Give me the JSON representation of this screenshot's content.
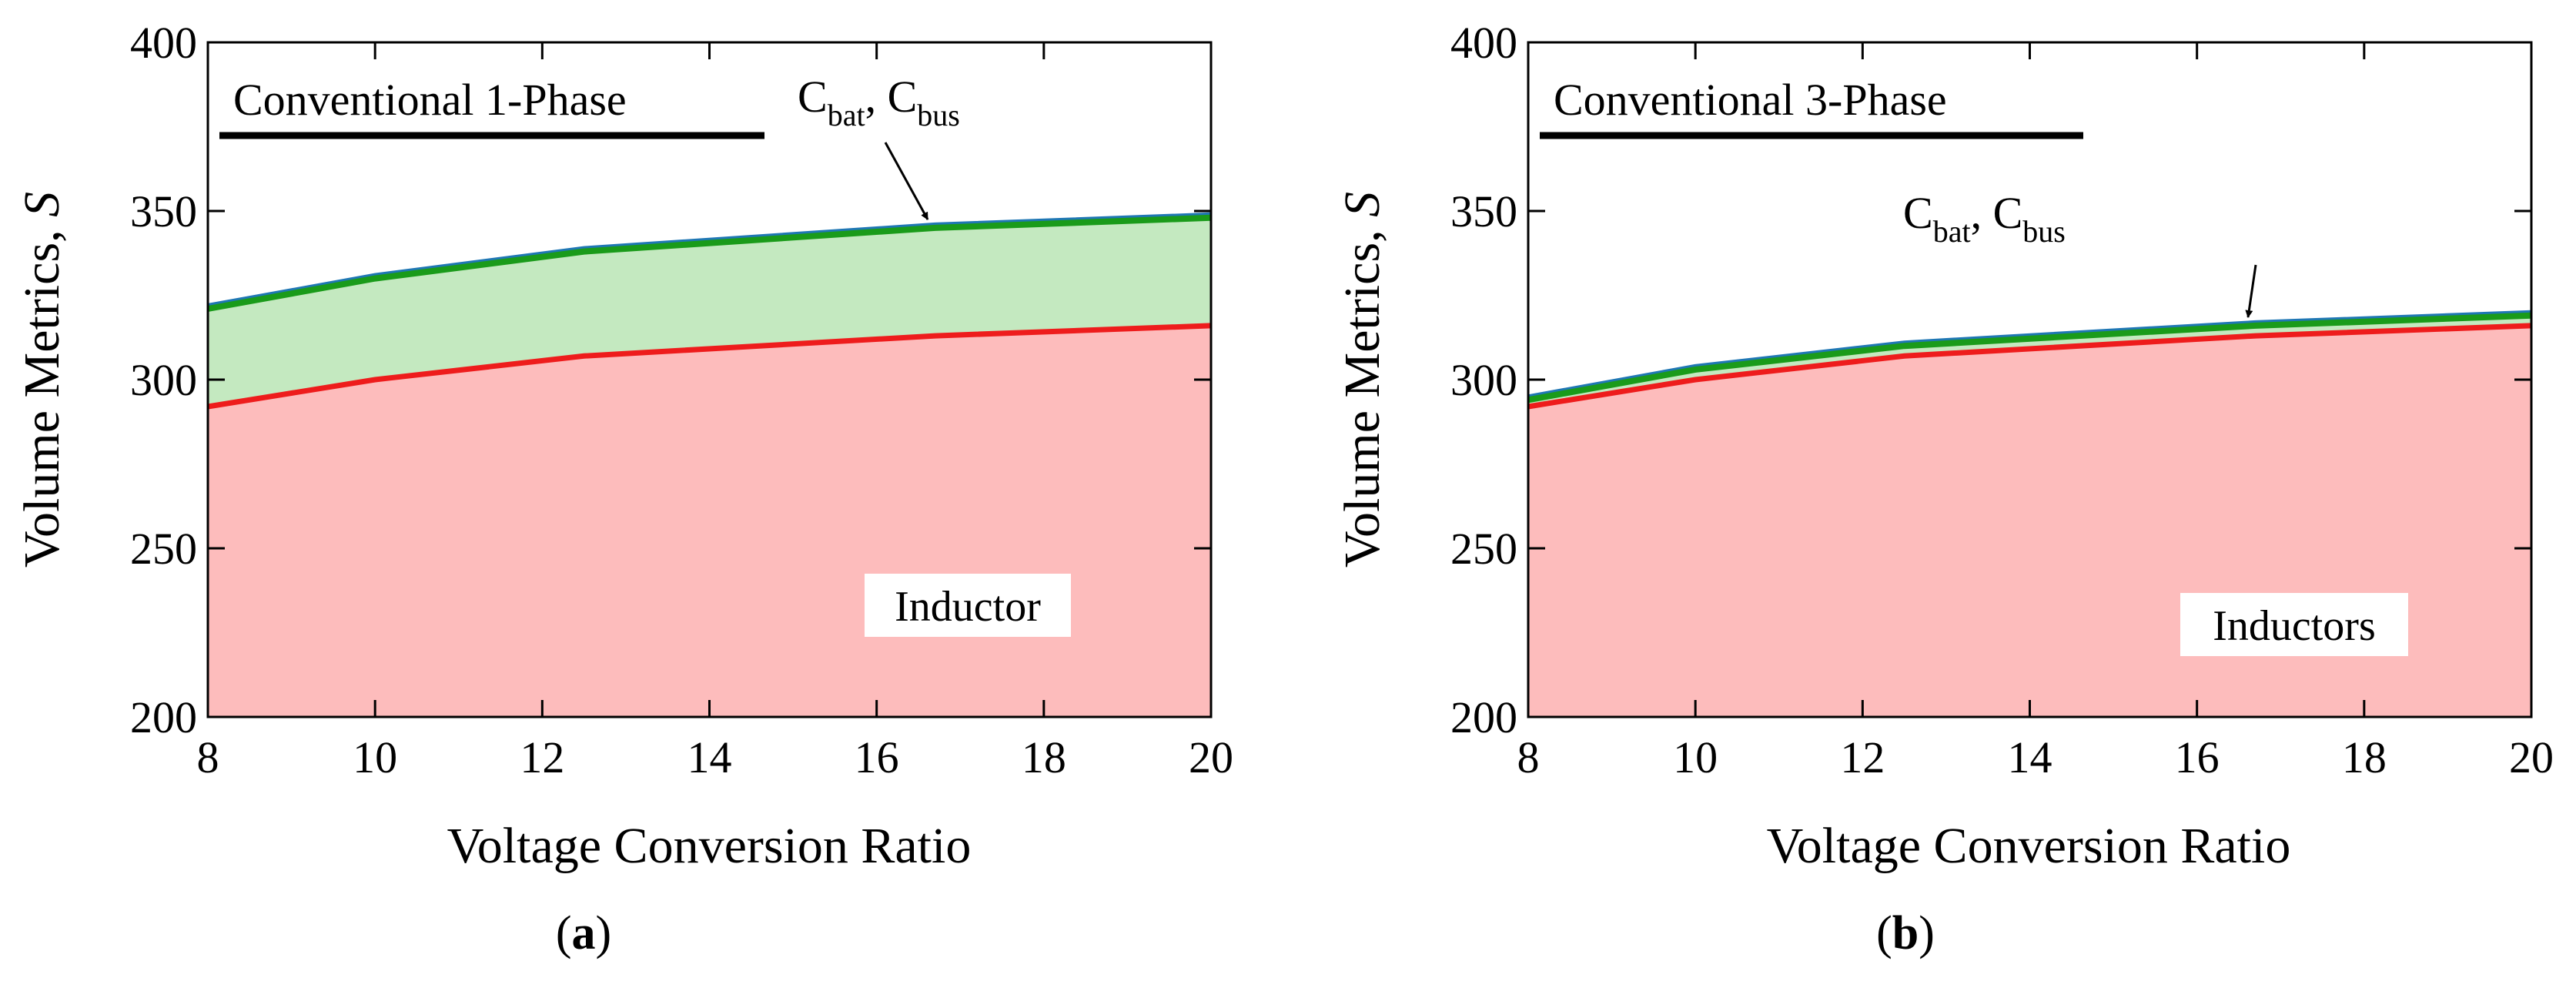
{
  "panels": [
    {
      "caption": "a",
      "title_box": "Conventional 1-Phase",
      "cap_label": {
        "main": "C",
        "sub1": "bat",
        "sep": ", C",
        "sub2": "bus"
      },
      "area_label": "Inductor",
      "xlabel": "Voltage Conversion Ratio",
      "ylabel": "Volume Metrics, ",
      "ylabel_italic": "S"
    },
    {
      "caption": "b",
      "title_box": "Conventional 3-Phase",
      "cap_label": {
        "main": "C",
        "sub1": "bat",
        "sep": ", C",
        "sub2": "bus"
      },
      "area_label": "Inductors",
      "xlabel": "Voltage Conversion Ratio",
      "ylabel": "Volume Metrics, ",
      "ylabel_italic": "S"
    }
  ],
  "colors": {
    "inductor_fill": "#fdbcbc",
    "inductor_line": "#ee1c1c",
    "capacitor_fill": "#c4e9c0",
    "capacitor_line": "#1a9b1a",
    "blue_line": "#1f77b4",
    "axis": "#000000"
  },
  "chart_data": [
    {
      "type": "area",
      "x": [
        8,
        10,
        12.5,
        16.7,
        20
      ],
      "xlim": [
        8,
        20
      ],
      "ylim": [
        200,
        400
      ],
      "xticks": [
        8,
        10,
        12,
        14,
        16,
        18,
        20
      ],
      "yticks": [
        200,
        250,
        300,
        350,
        400
      ],
      "xlabel": "Voltage Conversion Ratio",
      "ylabel": "Volume Metrics, S",
      "grid": false,
      "series": [
        {
          "name": "Inductor",
          "values": [
            292,
            300,
            307,
            313,
            316
          ]
        },
        {
          "name": "Cbat, Cbus",
          "values": [
            321,
            330,
            338,
            345,
            348
          ]
        }
      ]
    },
    {
      "type": "area",
      "x": [
        8,
        10,
        12.5,
        16.7,
        20
      ],
      "xlim": [
        8,
        20
      ],
      "ylim": [
        200,
        400
      ],
      "xticks": [
        8,
        10,
        12,
        14,
        16,
        18,
        20
      ],
      "yticks": [
        200,
        250,
        300,
        350,
        400
      ],
      "xlabel": "Voltage Conversion Ratio",
      "ylabel": "Volume Metrics, S",
      "grid": false,
      "series": [
        {
          "name": "Inductors",
          "values": [
            292,
            300,
            307,
            313,
            316
          ]
        },
        {
          "name": "Cbat, Cbus",
          "values": [
            294,
            303,
            310,
            316,
            319
          ]
        }
      ]
    }
  ]
}
